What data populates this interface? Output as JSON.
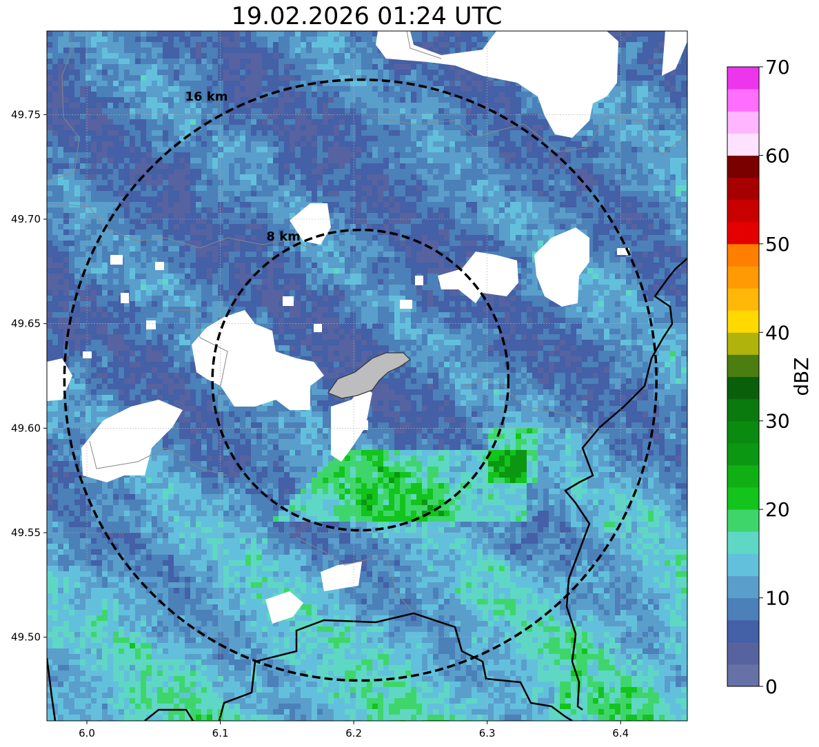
{
  "title": "19.02.2026 01:24 UTC",
  "map": {
    "x_range": [
      5.97,
      6.45
    ],
    "y_range": [
      49.46,
      49.79
    ],
    "x_ticks": [
      6.0,
      6.1,
      6.2,
      6.3,
      6.4
    ],
    "x_tick_labels": [
      "6.0",
      "6.1",
      "6.2",
      "6.3",
      "6.4"
    ],
    "y_ticks": [
      49.5,
      49.55,
      49.6,
      49.65,
      49.7,
      49.75
    ],
    "y_tick_labels": [
      "49.50",
      "49.55",
      "49.60",
      "49.65",
      "49.70",
      "49.75"
    ],
    "grid": true,
    "radar_center": [
      6.205,
      49.623
    ],
    "range_rings": [
      {
        "radius_km": 8,
        "label": "8 km"
      },
      {
        "radius_km": 16,
        "label": "16 km"
      }
    ]
  },
  "colorbar": {
    "label": "dBZ",
    "min": 0,
    "max": 70,
    "ticks": [
      0,
      10,
      20,
      30,
      40,
      50,
      60,
      70
    ],
    "tick_labels": [
      "0",
      "10",
      "20",
      "30",
      "40",
      "50",
      "60",
      "70"
    ],
    "colors": [
      "#6671a8",
      "#56639f",
      "#4460a6",
      "#4b80b8",
      "#5a9ecb",
      "#63c0dd",
      "#5fd7c5",
      "#3ed66b",
      "#12c41c",
      "#10b015",
      "#0c9712",
      "#0b8a10",
      "#0a7a0e",
      "#0a5f0b",
      "#4b7d10",
      "#afb30b",
      "#ffd900",
      "#ffb70a",
      "#ff9a05",
      "#ff7f00",
      "#e40000",
      "#c80000",
      "#a60000",
      "#7a0000",
      "#ffe2ff",
      "#ffb6ff",
      "#ff6eff",
      "#ee35ee"
    ]
  }
}
